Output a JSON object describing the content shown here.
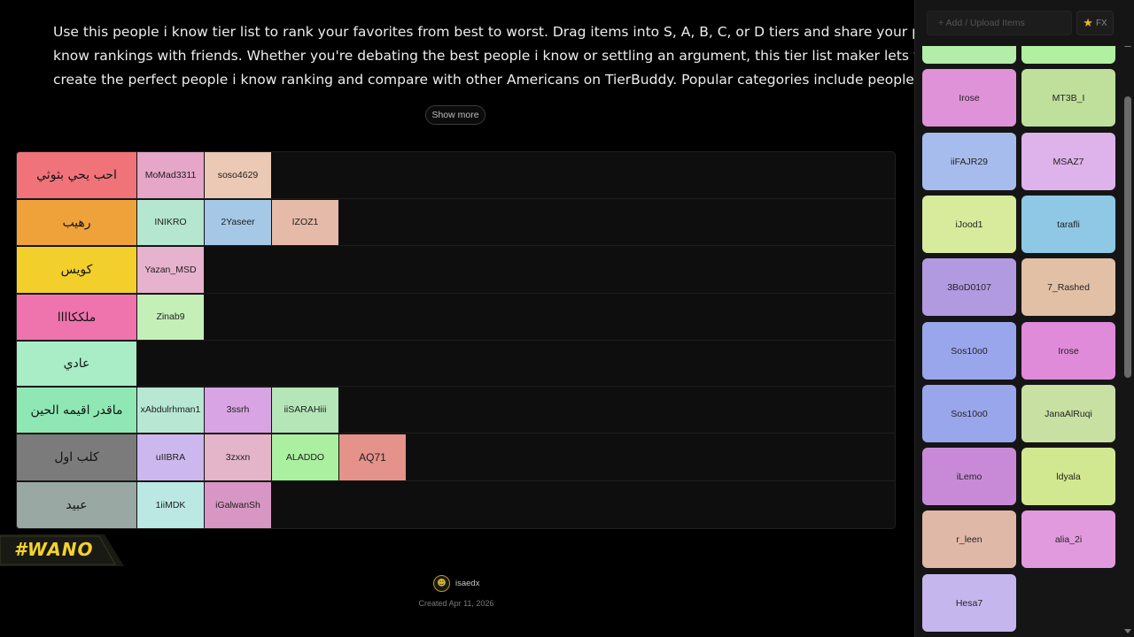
{
  "description": {
    "lines": [
      "Use this people i know tier list to rank your favorites from best to worst. Drag items into S, A, B, C, or D tiers and share your people i",
      "know rankings with friends. Whether you're debating the best people i know or settling an argument, this tier list maker lets you",
      "create the perfect people i know ranking and compare with other Americans on TierBuddy. Popular categories include people,..."
    ],
    "show_more_label": "Show more"
  },
  "tiers": [
    {
      "label": "احب يحي بثوثي",
      "color": "#f0737a",
      "items": [
        {
          "name": "MoMad3311",
          "color": "#e5a6c8"
        },
        {
          "name": "soso4629",
          "color": "#ecc9b5"
        }
      ]
    },
    {
      "label": "رهيب",
      "color": "#f0a23a",
      "items": [
        {
          "name": "INIKRO",
          "color": "#b5e6cf"
        },
        {
          "name": "2Yaseer",
          "color": "#a4c8e6"
        },
        {
          "name": "IZOZ1",
          "color": "#e5baa8"
        }
      ]
    },
    {
      "label": "كويس",
      "color": "#f2cf2a",
      "items": [
        {
          "name": "Yazan_MSD",
          "color": "#e6b2cd"
        }
      ]
    },
    {
      "label": "ملككاااا",
      "color": "#ef74ae",
      "items": [
        {
          "name": "Zinab9",
          "color": "#c4f0b8"
        }
      ]
    },
    {
      "label": "عادي",
      "color": "#a8edc6",
      "items": []
    },
    {
      "label": "ماقدر اقيمه الحين",
      "color": "#8fe8b4",
      "items": [
        {
          "name": "xAbdulrhman1",
          "color": "#b8e8d4"
        },
        {
          "name": "3ssrh",
          "color": "#d8a4e4"
        },
        {
          "name": "iiSARAHiii",
          "color": "#b4e6b8"
        }
      ]
    },
    {
      "label": "كلب اول",
      "color": "#7b7b7b",
      "items": [
        {
          "name": "uIIBRA",
          "color": "#ccb8ee"
        },
        {
          "name": "3zxxn",
          "color": "#e4b4c8"
        },
        {
          "name": "ALADDO",
          "color": "#aaf0a0"
        },
        {
          "name": "AQ71",
          "color": "#e4928a"
        }
      ]
    },
    {
      "label": "عبيد",
      "color": "#9aa8a4",
      "items": [
        {
          "name": "1iiMDK",
          "color": "#bce8e4"
        },
        {
          "name": "iGalwanSh",
          "color": "#d896c4"
        }
      ]
    }
  ],
  "watermark": {
    "text": "#WANO"
  },
  "footer": {
    "creator": "isaedx",
    "created": "Created Apr 11, 2026"
  },
  "sidebar": {
    "add_label": "Add / Upload Items",
    "fx_label": "FX",
    "items": [
      {
        "name": "",
        "color": "#b4ecaa"
      },
      {
        "name": "",
        "color": "#b0f0a0"
      },
      {
        "name": "Irose",
        "color": "#df92d8"
      },
      {
        "name": "MT3B_I",
        "color": "#bfe09a"
      },
      {
        "name": "iiFAJR29",
        "color": "#a6bcec"
      },
      {
        "name": "MSAZ7",
        "color": "#deb2ea"
      },
      {
        "name": "iJood1",
        "color": "#d8ea9c"
      },
      {
        "name": "tarafli",
        "color": "#8ec8e4"
      },
      {
        "name": "3BoD0107",
        "color": "#b29ae0"
      },
      {
        "name": "7_Rashed",
        "color": "#e2c0a6"
      },
      {
        "name": "Sos10o0",
        "color": "#9aa6ec"
      },
      {
        "name": "Irose",
        "color": "#e08ada"
      },
      {
        "name": "Sos10o0",
        "color": "#9aa6ec"
      },
      {
        "name": "JanaAlRuqi",
        "color": "#c8e0a2"
      },
      {
        "name": "iLemo",
        "color": "#c88ad6"
      },
      {
        "name": "ldyala",
        "color": "#d2e890"
      },
      {
        "name": "r_leen",
        "color": "#e0b8a8"
      },
      {
        "name": "alia_2i",
        "color": "#e29ade"
      },
      {
        "name": "Hesa7",
        "color": "#c6b6ee"
      }
    ]
  }
}
